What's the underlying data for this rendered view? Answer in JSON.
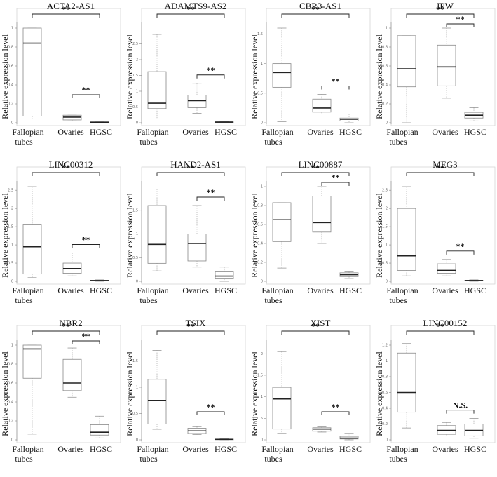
{
  "figure": {
    "ylabel": "Relative expression level"
  },
  "chart_data": [
    {
      "type": "box",
      "title": "ACTA2-AS1",
      "categories": [
        "Fallopian tubes",
        "Ovaries",
        "HGSC"
      ],
      "ylim": [
        0,
        1
      ],
      "yticks": [
        0,
        0.2,
        0.4,
        0.6,
        0.8,
        1
      ],
      "boxes": [
        {
          "min": 0.04,
          "q1": 0.07,
          "median": 0.84,
          "q3": 1.0,
          "max": 1.0
        },
        {
          "min": 0.02,
          "q1": 0.03,
          "median": 0.06,
          "q3": 0.08,
          "max": 0.08
        },
        {
          "min": 0.0,
          "q1": 0.0,
          "median": 0.005,
          "q3": 0.01,
          "max": 0.01
        }
      ],
      "brackets": [
        {
          "from": 0,
          "to": 2,
          "label": "**"
        },
        {
          "from": 1,
          "to": 2,
          "label": "**"
        }
      ]
    },
    {
      "type": "box",
      "title": "ADAMTS9-AS2",
      "categories": [
        "Fallopian tubes",
        "Ovaries",
        "HGSC"
      ],
      "ylim": [
        0,
        3
      ],
      "yticks": [
        0,
        0.5,
        1,
        1.5,
        2,
        2.5
      ],
      "boxes": [
        {
          "min": 0.12,
          "q1": 0.45,
          "median": 0.62,
          "q3": 1.62,
          "max": 2.8
        },
        {
          "min": 0.3,
          "q1": 0.48,
          "median": 0.7,
          "q3": 0.88,
          "max": 1.25
        },
        {
          "min": 0.0,
          "q1": 0.01,
          "median": 0.02,
          "q3": 0.03,
          "max": 0.04
        }
      ],
      "brackets": [
        {
          "from": 0,
          "to": 2,
          "label": "**"
        },
        {
          "from": 1,
          "to": 2,
          "label": "**"
        }
      ]
    },
    {
      "type": "box",
      "title": "CBR3-AS1",
      "categories": [
        "Fallopian tubes",
        "Ovaries",
        "HGSC"
      ],
      "ylim": [
        0,
        1.6
      ],
      "yticks": [
        0,
        0.5,
        1,
        1.5
      ],
      "boxes": [
        {
          "min": 0.02,
          "q1": 0.6,
          "median": 0.85,
          "q3": 1.0,
          "max": 1.6
        },
        {
          "min": 0.15,
          "q1": 0.18,
          "median": 0.25,
          "q3": 0.4,
          "max": 0.48
        },
        {
          "min": 0.0,
          "q1": 0.03,
          "median": 0.06,
          "q3": 0.08,
          "max": 0.15
        }
      ],
      "brackets": [
        {
          "from": 0,
          "to": 2,
          "label": "**"
        },
        {
          "from": 1,
          "to": 2,
          "label": "**"
        }
      ]
    },
    {
      "type": "box",
      "title": "IPW",
      "categories": [
        "Fallopian tubes",
        "Ovaries",
        "HGSC"
      ],
      "ylim": [
        0,
        1
      ],
      "yticks": [
        0,
        0.2,
        0.4,
        0.6,
        0.8,
        1
      ],
      "boxes": [
        {
          "min": 0.0,
          "q1": 0.38,
          "median": 0.57,
          "q3": 0.92,
          "max": 0.92
        },
        {
          "min": 0.26,
          "q1": 0.39,
          "median": 0.59,
          "q3": 0.82,
          "max": 1.0
        },
        {
          "min": 0.02,
          "q1": 0.05,
          "median": 0.08,
          "q3": 0.11,
          "max": 0.16
        }
      ],
      "brackets": [
        {
          "from": 0,
          "to": 2,
          "label": "**"
        },
        {
          "from": 1,
          "to": 2,
          "label": "**"
        }
      ]
    },
    {
      "type": "box",
      "title": "LINC00312",
      "categories": [
        "Fallopian tubes",
        "Ovaries",
        "HGSC"
      ],
      "ylim": [
        0,
        2.6
      ],
      "yticks": [
        0,
        0.5,
        1,
        1.5,
        2,
        2.5
      ],
      "boxes": [
        {
          "min": 0.1,
          "q1": 0.2,
          "median": 0.95,
          "q3": 1.55,
          "max": 2.6
        },
        {
          "min": 0.15,
          "q1": 0.22,
          "median": 0.35,
          "q3": 0.5,
          "max": 0.78
        },
        {
          "min": 0.0,
          "q1": 0.01,
          "median": 0.02,
          "q3": 0.03,
          "max": 0.04
        }
      ],
      "brackets": [
        {
          "from": 0,
          "to": 2,
          "label": "**"
        },
        {
          "from": 1,
          "to": 2,
          "label": "**"
        }
      ]
    },
    {
      "type": "box",
      "title": "HAND2-AS1",
      "categories": [
        "Fallopian tubes",
        "Ovaries",
        "HGSC"
      ],
      "ylim": [
        0,
        2
      ],
      "yticks": [
        0,
        0.5,
        1,
        1.5
      ],
      "boxes": [
        {
          "min": 0.22,
          "q1": 0.38,
          "median": 0.78,
          "q3": 1.6,
          "max": 1.95
        },
        {
          "min": 0.3,
          "q1": 0.43,
          "median": 0.8,
          "q3": 1.0,
          "max": 1.6
        },
        {
          "min": 0.0,
          "q1": 0.05,
          "median": 0.11,
          "q3": 0.2,
          "max": 0.3
        }
      ],
      "brackets": [
        {
          "from": 0,
          "to": 2,
          "label": "**"
        },
        {
          "from": 1,
          "to": 2,
          "label": "**"
        }
      ]
    },
    {
      "type": "box",
      "title": "LINC00887",
      "categories": [
        "Fallopian tubes",
        "Ovaries",
        "HGSC"
      ],
      "ylim": [
        0,
        1
      ],
      "yticks": [
        0,
        0.2,
        0.4,
        0.6,
        0.8,
        1
      ],
      "boxes": [
        {
          "min": 0.14,
          "q1": 0.42,
          "median": 0.65,
          "q3": 0.83,
          "max": 0.83
        },
        {
          "min": 0.4,
          "q1": 0.52,
          "median": 0.62,
          "q3": 0.9,
          "max": 1.0
        },
        {
          "min": 0.03,
          "q1": 0.05,
          "median": 0.07,
          "q3": 0.09,
          "max": 0.1
        }
      ],
      "brackets": [
        {
          "from": 0,
          "to": 2,
          "label": "**"
        },
        {
          "from": 1,
          "to": 2,
          "label": "**"
        }
      ]
    },
    {
      "type": "box",
      "title": "MEG3",
      "categories": [
        "Fallopian tubes",
        "Ovaries",
        "HGSC"
      ],
      "ylim": [
        0,
        2.6
      ],
      "yticks": [
        0,
        0.5,
        1,
        1.5,
        2,
        2.5
      ],
      "boxes": [
        {
          "min": 0.15,
          "q1": 0.3,
          "median": 0.7,
          "q3": 2.0,
          "max": 2.6
        },
        {
          "min": 0.15,
          "q1": 0.22,
          "median": 0.3,
          "q3": 0.48,
          "max": 0.6
        },
        {
          "min": 0.0,
          "q1": 0.01,
          "median": 0.02,
          "q3": 0.03,
          "max": 0.04
        }
      ],
      "brackets": [
        {
          "from": 0,
          "to": 2,
          "label": "**"
        },
        {
          "from": 1,
          "to": 2,
          "label": "**"
        }
      ]
    },
    {
      "type": "box",
      "title": "NBR2",
      "categories": [
        "Fallopian tubes",
        "Ovaries",
        "HGSC"
      ],
      "ylim": [
        0,
        1
      ],
      "yticks": [
        0,
        0.2,
        0.4,
        0.6,
        0.8,
        1
      ],
      "boxes": [
        {
          "min": 0.06,
          "q1": 0.65,
          "median": 0.96,
          "q3": 1.0,
          "max": 1.0
        },
        {
          "min": 0.45,
          "q1": 0.52,
          "median": 0.6,
          "q3": 0.85,
          "max": 0.97
        },
        {
          "min": 0.02,
          "q1": 0.05,
          "median": 0.08,
          "q3": 0.16,
          "max": 0.25
        }
      ],
      "brackets": [
        {
          "from": 0,
          "to": 2,
          "label": "**"
        },
        {
          "from": 1,
          "to": 2,
          "label": "**"
        }
      ]
    },
    {
      "type": "box",
      "title": "TSIX",
      "categories": [
        "Fallopian tubes",
        "Ovaries",
        "HGSC"
      ],
      "ylim": [
        0,
        1.8
      ],
      "yticks": [
        0,
        0.5,
        1,
        1.5
      ],
      "boxes": [
        {
          "min": 0.2,
          "q1": 0.3,
          "median": 0.75,
          "q3": 1.15,
          "max": 1.7
        },
        {
          "min": 0.1,
          "q1": 0.12,
          "median": 0.17,
          "q3": 0.22,
          "max": 0.25
        },
        {
          "min": 0.0,
          "q1": 0.005,
          "median": 0.01,
          "q3": 0.015,
          "max": 0.02
        }
      ],
      "brackets": [
        {
          "from": 0,
          "to": 2,
          "label": "**"
        },
        {
          "from": 1,
          "to": 2,
          "label": "**"
        }
      ]
    },
    {
      "type": "box",
      "title": "XIST",
      "categories": [
        "Fallopian tubes",
        "Ovaries",
        "HGSC"
      ],
      "ylim": [
        0,
        2.2
      ],
      "yticks": [
        0,
        0.5,
        1,
        1.5,
        2
      ],
      "boxes": [
        {
          "min": 0.15,
          "q1": 0.25,
          "median": 0.95,
          "q3": 1.22,
          "max": 2.05
        },
        {
          "min": 0.18,
          "q1": 0.2,
          "median": 0.25,
          "q3": 0.28,
          "max": 0.3
        },
        {
          "min": 0.0,
          "q1": 0.02,
          "median": 0.04,
          "q3": 0.08,
          "max": 0.15
        }
      ],
      "brackets": [
        {
          "from": 0,
          "to": 2,
          "label": "**"
        },
        {
          "from": 1,
          "to": 2,
          "label": "**"
        }
      ]
    },
    {
      "type": "box",
      "title": "LINC00152",
      "categories": [
        "Fallopian tubes",
        "Ovaries",
        "HGSC"
      ],
      "ylim": [
        0,
        1.2
      ],
      "yticks": [
        0,
        0.2,
        0.4,
        0.6,
        0.8,
        1,
        1.2
      ],
      "boxes": [
        {
          "min": 0.15,
          "q1": 0.35,
          "median": 0.6,
          "q3": 1.1,
          "max": 1.22
        },
        {
          "min": 0.05,
          "q1": 0.07,
          "median": 0.12,
          "q3": 0.18,
          "max": 0.22
        },
        {
          "min": 0.02,
          "q1": 0.05,
          "median": 0.12,
          "q3": 0.2,
          "max": 0.27
        }
      ],
      "brackets": [
        {
          "from": 0,
          "to": 2,
          "label": "**"
        },
        {
          "from": 1,
          "to": 2,
          "label": "N.S."
        }
      ]
    }
  ]
}
